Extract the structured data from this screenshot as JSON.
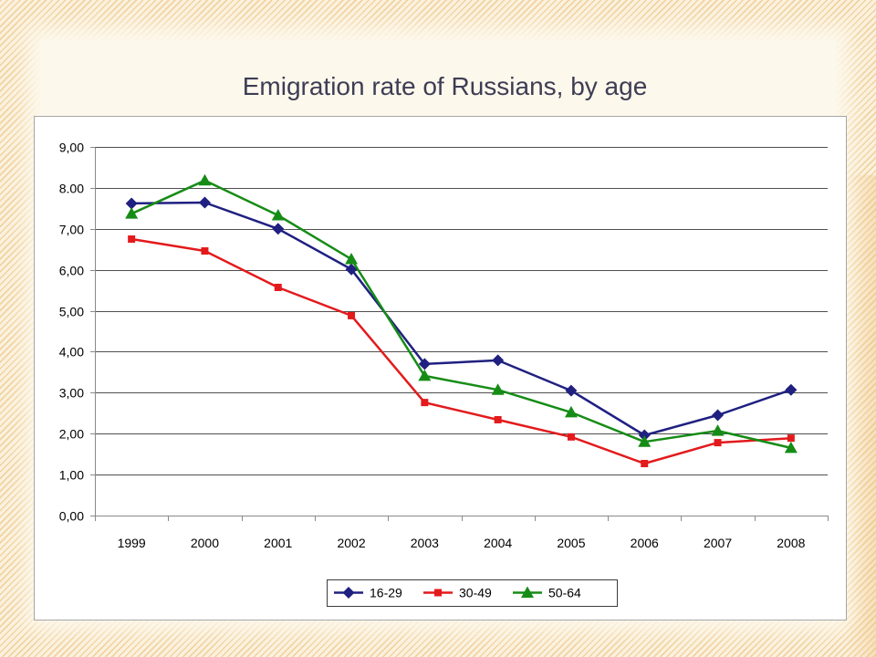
{
  "colors": {
    "title": "#3D3D55"
  },
  "chart_data": {
    "type": "line",
    "title": "Emigration rate of Russians, by age",
    "categories": [
      "1999",
      "2000",
      "2001",
      "2002",
      "2003",
      "2004",
      "2005",
      "2006",
      "2007",
      "2008"
    ],
    "series": [
      {
        "name": "16-29",
        "color": "#1F2080",
        "marker": "diamond",
        "values": [
          7.62,
          7.64,
          7.0,
          6.01,
          3.7,
          3.79,
          3.05,
          1.96,
          2.45,
          3.07
        ]
      },
      {
        "name": "30-49",
        "color": "#E31A1C",
        "marker": "square",
        "values": [
          6.75,
          6.46,
          5.57,
          4.88,
          2.76,
          2.34,
          1.92,
          1.27,
          1.78,
          1.89
        ]
      },
      {
        "name": "50-64",
        "color": "#168C16",
        "marker": "triangle",
        "values": [
          7.37,
          8.18,
          7.33,
          6.26,
          3.41,
          3.07,
          2.52,
          1.8,
          2.07,
          1.65
        ]
      }
    ],
    "ylim": [
      0,
      9
    ],
    "y_ticks": [
      0,
      1,
      2,
      3,
      4,
      5,
      6,
      7,
      8,
      9
    ],
    "y_tick_labels": [
      "0,00",
      "1,00",
      "2,00",
      "3,00",
      "4,00",
      "5,00",
      "6,00",
      "7,00",
      "8.00",
      "9,00"
    ],
    "grid": true,
    "legend": "bottom"
  }
}
